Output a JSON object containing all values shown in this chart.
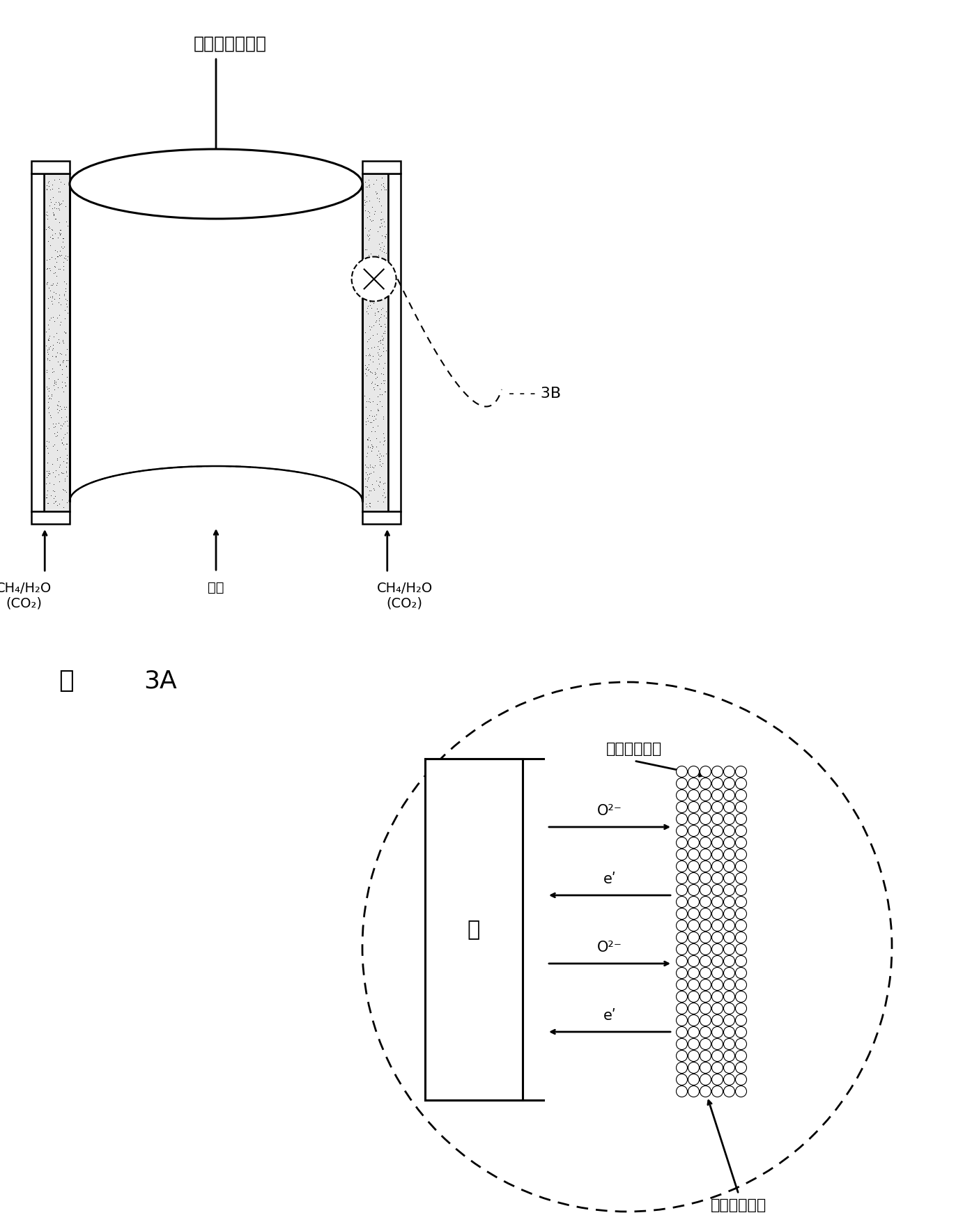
{
  "bg_color": "#ffffff",
  "title_text": "却化膜反应器管",
  "fig_label": "图",
  "fig3A_num": "3A",
  "label_3B": "3B",
  "label_mo": "膜",
  "label_bonded_cat": "粘合呂化剂层",
  "label_3d_cat": "三维呂化剂层",
  "label_ch4_left": "CH₄/H₂O",
  "label_co2_left": "(CO₂)",
  "label_air": "空气",
  "label_ch4_right": "CH₄/H₂O",
  "label_co2_right": "(CO₂)",
  "arrow_o2": "O²⁻",
  "arrow_e": "eʹ",
  "line_color": "#000000",
  "lw": 1.8,
  "lw_thick": 2.2,
  "font_size_title": 18,
  "font_size_label": 16,
  "font_size_small": 14,
  "font_size_arrow": 15
}
